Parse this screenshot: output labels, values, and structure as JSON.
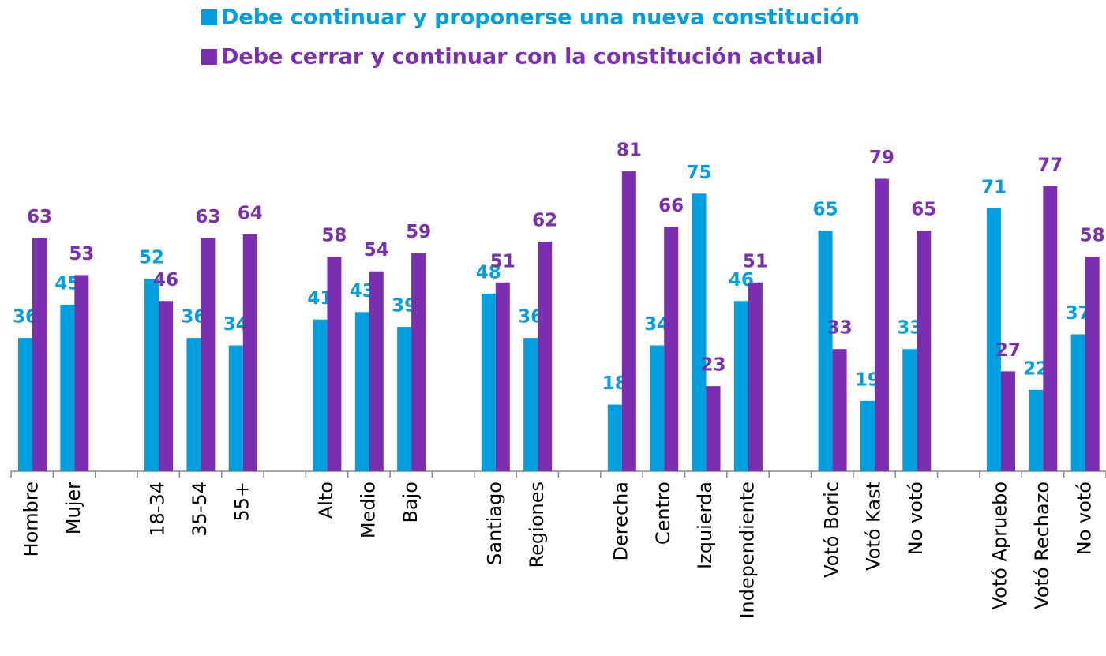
{
  "chart_data": {
    "type": "bar",
    "categories": [
      "Hombre",
      "Mujer",
      null,
      "18-34",
      "35-54",
      "55+",
      null,
      "Alto",
      "Medio",
      "Bajo",
      null,
      "Santiago",
      "Regiones",
      null,
      "Derecha",
      "Centro",
      "Izquierda",
      "Independiente",
      null,
      "Votó Boric",
      "Votó Kast",
      "No votó",
      null,
      "Votó Apruebo",
      "Votó Rechazo",
      "No votó"
    ],
    "series": [
      {
        "name": "Debe continuar y proponerse una nueva constitución",
        "color": "#00a0e0",
        "values": [
          36,
          45,
          null,
          52,
          36,
          34,
          null,
          41,
          43,
          39,
          null,
          48,
          36,
          null,
          18,
          34,
          75,
          46,
          null,
          65,
          19,
          33,
          null,
          71,
          22,
          37
        ]
      },
      {
        "name": "Debe cerrar y continuar con la constitución actual",
        "color": "#7b2fb0",
        "values": [
          63,
          53,
          null,
          46,
          63,
          64,
          null,
          58,
          54,
          59,
          null,
          51,
          62,
          null,
          81,
          66,
          23,
          51,
          null,
          33,
          79,
          65,
          null,
          27,
          77,
          58
        ]
      }
    ],
    "ylim": [
      0,
      100
    ]
  }
}
